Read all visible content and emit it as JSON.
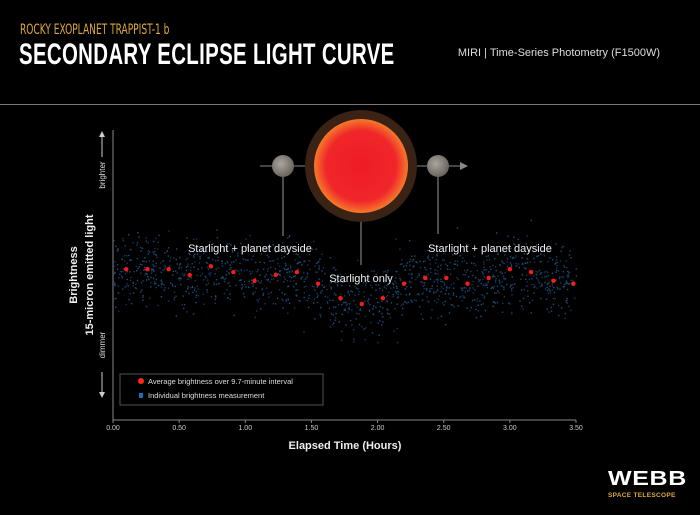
{
  "header": {
    "kicker": "ROCKY EXOPLANET TRAPPIST-1 b",
    "title": "SECONDARY ECLIPSE LIGHT CURVE",
    "instrument": "MIRI | Time-Series Photometry (F1500W)"
  },
  "logo": {
    "main": "WEBB",
    "sub": "SPACE TELESCOPE"
  },
  "chart_data": {
    "type": "scatter",
    "title": "",
    "xlabel": "Elapsed Time (Hours)",
    "ylabel": "Brightness",
    "ylabel_sub": "15-micron emitted light",
    "y_top_label": "brighter",
    "y_bottom_label": "dimmer",
    "xlim": [
      0,
      3.5
    ],
    "ylim": [
      0,
      1
    ],
    "x_ticks": [
      "0.00",
      "0.50",
      "1.00",
      "1.50",
      "2.00",
      "2.50",
      "3.00",
      "3.50"
    ],
    "grid": false,
    "legend_placement": "bottom-left",
    "annotations": [
      "Starlight + planet dayside",
      "Starlight only",
      "Starlight + planet dayside"
    ],
    "colors": {
      "average": "#ff1a1a",
      "individual": "#1f5a8f",
      "star": "#ee2222",
      "background": "#000000"
    },
    "series": [
      {
        "name": "Average brightness over 9.7-minute interval",
        "marker": "circle",
        "x": [
          0.1,
          0.26,
          0.42,
          0.58,
          0.74,
          0.91,
          1.07,
          1.23,
          1.39,
          1.55,
          1.72,
          1.88,
          2.04,
          2.2,
          2.36,
          2.52,
          2.68,
          2.84,
          3.0,
          3.16,
          3.33,
          3.48
        ],
        "y": [
          0.52,
          0.52,
          0.52,
          0.5,
          0.53,
          0.51,
          0.48,
          0.5,
          0.51,
          0.47,
          0.42,
          0.4,
          0.42,
          0.47,
          0.49,
          0.49,
          0.47,
          0.49,
          0.52,
          0.51,
          0.48,
          0.47
        ]
      },
      {
        "name": "Individual brightness measurement",
        "marker": "square"
      }
    ]
  }
}
